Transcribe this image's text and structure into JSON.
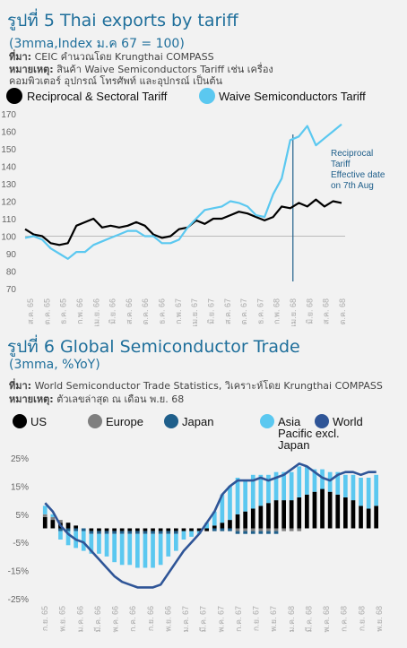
{
  "fig5": {
    "title": "รูปที่ 5 Thai exports by tariff",
    "subtitle": "(3mma,Index ม.ค 67 = 100)",
    "source_label": "ที่มา:",
    "source_text": "CEIC คำนวณโดย Krungthai COMPASS",
    "remark_label": "หมายเหตุ:",
    "remark_text_1": "สินค้า Waive Semiconductors Tariff เช่น เครื่อง",
    "remark_text_2": "คอมพิวเตอร์ อุปกรณ์ โทรศัพท์ และอุปกรณ์ เป็นต้น"
  },
  "fig6": {
    "title": "รูปที่ 6 Global Semiconductor Trade",
    "subtitle": "(3mma, %YoY)",
    "source_label": "ที่มา:",
    "source_text": "World Semiconductor Trade Statistics, วิเคราะห์โดย Krungthai COMPASS",
    "remark_label": "หมายเหตุ:",
    "remark_text": "ตัวเลขล่าสุด ณ เดือน พ.ย. 68"
  },
  "chart_data": [
    {
      "type": "line",
      "title": "รูปที่ 5 Thai exports by tariff",
      "ylim": [
        70,
        170
      ],
      "yticks": [
        70,
        80,
        90,
        100,
        110,
        120,
        130,
        140,
        150,
        160,
        170
      ],
      "x_tick_labels": [
        "ส.ค. 65",
        "ต.ค. 65",
        "ธ.ค. 65",
        "ก.พ. 66",
        "เม.ย. 66",
        "มิ.ย. 66",
        "ส.ค. 66",
        "ต.ค. 66",
        "ธ.ค. 66",
        "ก.พ. 67",
        "เม.ย. 67",
        "มิ.ย. 67",
        "ส.ค. 67",
        "ต.ค. 67",
        "ธ.ค. 67",
        "ก.พ. 68",
        "เม.ย. 68",
        "มิ.ย. 68",
        "ส.ค. 68",
        "ต.ค. 68"
      ],
      "colors": {
        "reciprocal": "#000000",
        "waive": "#5bc8f0",
        "annotation": "#1f5f8b",
        "ref": "#bbbbbb"
      },
      "series": [
        {
          "name": "Reciprocal & Sectoral Tariff",
          "values": [
            104,
            101,
            100,
            96,
            95,
            96,
            106,
            108,
            110,
            105,
            106,
            105,
            106,
            108,
            106,
            101,
            99,
            100,
            104,
            105,
            109,
            107,
            110,
            110,
            112,
            114,
            113,
            111,
            109,
            111,
            117,
            116,
            119,
            117,
            121,
            117,
            120,
            119
          ]
        },
        {
          "name": "Waive Semiconductors Tariff",
          "values": [
            99,
            100,
            98,
            93,
            90,
            87,
            91,
            91,
            95,
            97,
            99,
            101,
            103,
            103,
            100,
            100,
            96,
            96,
            98,
            105,
            110,
            115,
            116,
            117,
            120,
            119,
            117,
            112,
            111,
            124,
            133,
            155,
            157,
            163,
            152,
            156,
            160,
            164
          ]
        }
      ],
      "reference_line": 100,
      "annotation": {
        "text_lines": [
          "Reciprocal",
          "Tariff",
          "Effective date",
          "on 7th Aug"
        ],
        "at_index": 31
      }
    },
    {
      "type": "bar",
      "title": "รูปที่ 6 Global Semiconductor Trade",
      "ylim": [
        -25,
        25
      ],
      "yticks": [
        "25%",
        "15%",
        "5%",
        "-5%",
        "-15%",
        "-25%"
      ],
      "ytick_values": [
        25,
        15,
        5,
        -5,
        -15,
        -25
      ],
      "x_tick_labels": [
        "ก.ย. 65",
        "พ.ย. 65",
        "ม.ค. 66",
        "มี.ค. 66",
        "พ.ค. 66",
        "ก.ค. 66",
        "ก.ย. 66",
        "พ.ย. 66",
        "ม.ค. 67",
        "มี.ค. 67",
        "พ.ค. 67",
        "ก.ค. 67",
        "ก.ย. 67",
        "พ.ย. 67",
        "ม.ค. 68",
        "มี.ค. 68",
        "พ.ค. 68",
        "ก.ค. 68",
        "ก.ย. 68",
        "พ.ย. 68"
      ],
      "legend": [
        {
          "name": "US",
          "color": "#000000"
        },
        {
          "name": "Europe",
          "color": "#7f7f7f"
        },
        {
          "name": "Japan",
          "color": "#1f5f8b"
        },
        {
          "name": "Asia Pacific excl. Japan",
          "color": "#5bc8f0"
        },
        {
          "name": "World",
          "color": "#2f5597"
        }
      ],
      "series": [
        {
          "name": "US",
          "values": [
            4,
            3,
            2,
            2,
            1,
            0,
            -1,
            -1,
            -1,
            -1,
            -1,
            -1,
            -1,
            -1,
            -1,
            -1,
            -1,
            -1,
            -1,
            -1,
            -1,
            -1,
            1,
            2,
            3,
            5,
            6,
            7,
            8,
            9,
            10,
            10,
            10,
            11,
            12,
            13,
            14,
            13,
            12,
            11,
            10,
            8,
            7,
            8
          ]
        },
        {
          "name": "Europe",
          "values": [
            1,
            1,
            1,
            0,
            0,
            0,
            0,
            0,
            0,
            0,
            0,
            0,
            0,
            0,
            0,
            0,
            0,
            0,
            0,
            0,
            0,
            0,
            0,
            0,
            0,
            -1,
            -1,
            -1,
            -1,
            -1,
            -1,
            -1,
            -1,
            -1,
            0,
            0,
            0,
            0,
            0,
            0,
            0,
            0,
            0,
            0
          ]
        },
        {
          "name": "Japan",
          "values": [
            0,
            0,
            -1,
            -1,
            -1,
            -1,
            -1,
            -1,
            -1,
            -1,
            -1,
            -1,
            -1,
            -1,
            -1,
            -1,
            -1,
            -1,
            0,
            0,
            0,
            0,
            -1,
            -1,
            -1,
            -1,
            -1,
            -1,
            -1,
            -1,
            -1,
            0,
            0,
            0,
            0,
            0,
            0,
            0,
            0,
            0,
            0,
            0,
            0,
            0
          ]
        },
        {
          "name": "Asia Pacific excl. Japan",
          "values": [
            3,
            1,
            -3,
            -5,
            -6,
            -7,
            -7,
            -7,
            -8,
            -10,
            -11,
            -11,
            -12,
            -12,
            -12,
            -11,
            -8,
            -6,
            -3,
            -2,
            -1,
            2,
            5,
            10,
            12,
            13,
            11,
            12,
            11,
            10,
            10,
            10,
            10,
            11,
            10,
            8,
            7,
            7,
            8,
            8,
            9,
            10,
            11,
            11
          ]
        },
        {
          "name": "World",
          "values": [
            9,
            6,
            1,
            -2,
            -4,
            -5,
            -8,
            -11,
            -14,
            -17,
            -19,
            -20,
            -21,
            -21,
            -21,
            -20,
            -16,
            -12,
            -8,
            -5,
            -2,
            2,
            6,
            12,
            15,
            17,
            17,
            17,
            18,
            17,
            18,
            19,
            21,
            23,
            22,
            20,
            18,
            17,
            19,
            20,
            20,
            19,
            20,
            20
          ]
        }
      ]
    }
  ]
}
